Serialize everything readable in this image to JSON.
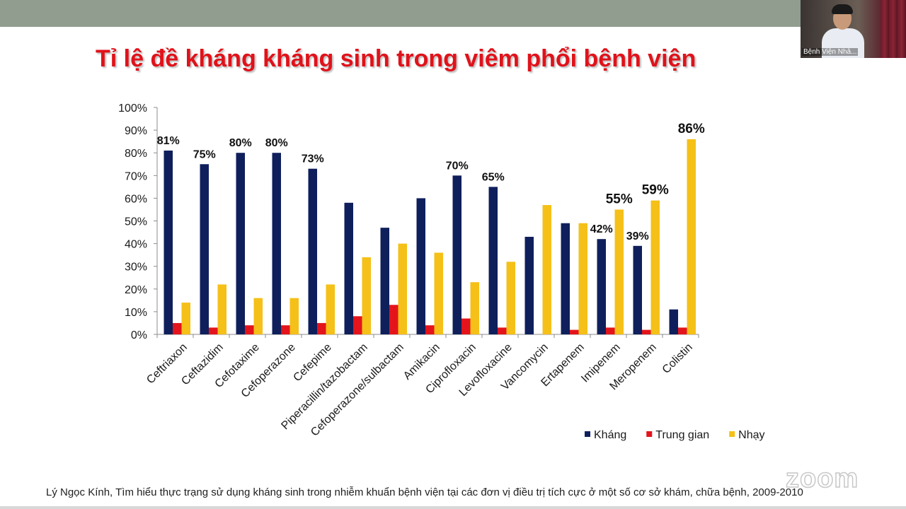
{
  "slide": {
    "title": "Tỉ lệ đề kháng kháng sinh trong viêm phổi bệnh viện",
    "citation": "Lý Ngọc Kính, Tìm hiểu thực trạng sử dụng kháng sinh trong nhiễm khuẩn bệnh viện tại các đơn vị điều trị tích cực ở một số cơ sở khám, chữa bệnh, 2009-2010"
  },
  "video": {
    "participant_name": "Bệnh Viện Nhâ..."
  },
  "watermark": {
    "text": "zoom"
  },
  "colors": {
    "khang": "#0f1f5c",
    "trung_gian": "#e3141b",
    "nhay": "#f5c018",
    "title": "#e0121a"
  },
  "chart_data": {
    "type": "bar",
    "categories": [
      "Ceftriaxon",
      "Ceftazidim",
      "Cefotaxime",
      "Cefoperazone",
      "Cefepime",
      "Piperacillin/tazobactam",
      "Cefoperazone/sulbactam",
      "Amikacin",
      "Ciprofloxacin",
      "Levofloxacine",
      "Vancomycin",
      "Ertapenem",
      "Imipenem",
      "Meropenem",
      "Colistin"
    ],
    "series": [
      {
        "name": "Kháng",
        "color": "#0f1f5c",
        "values": [
          81,
          75,
          80,
          80,
          73,
          58,
          47,
          60,
          70,
          65,
          43,
          49,
          42,
          39,
          11
        ]
      },
      {
        "name": "Trung gian",
        "color": "#e3141b",
        "values": [
          5,
          3,
          4,
          4,
          5,
          8,
          13,
          4,
          7,
          3,
          0,
          2,
          3,
          2,
          3
        ]
      },
      {
        "name": "Nhạy",
        "color": "#f5c018",
        "values": [
          14,
          22,
          16,
          16,
          22,
          34,
          40,
          36,
          23,
          32,
          57,
          49,
          55,
          59,
          86
        ]
      }
    ],
    "data_labels": [
      {
        "category": "Ceftriaxon",
        "series": "Kháng",
        "text": "81%"
      },
      {
        "category": "Ceftazidim",
        "series": "Kháng",
        "text": "75%"
      },
      {
        "category": "Cefotaxime",
        "series": "Kháng",
        "text": "80%"
      },
      {
        "category": "Cefoperazone",
        "series": "Kháng",
        "text": "80%"
      },
      {
        "category": "Cefepime",
        "series": "Kháng",
        "text": "73%"
      },
      {
        "category": "Ciprofloxacin",
        "series": "Kháng",
        "text": "70%"
      },
      {
        "category": "Levofloxacine",
        "series": "Kháng",
        "text": "65%"
      },
      {
        "category": "Imipenem",
        "series": "Kháng",
        "text": "42%"
      },
      {
        "category": "Meropenem",
        "series": "Kháng",
        "text": "39%"
      },
      {
        "category": "Imipenem",
        "series": "Nhạy",
        "text": "55%"
      },
      {
        "category": "Meropenem",
        "series": "Nhạy",
        "text": "59%"
      },
      {
        "category": "Colistin",
        "series": "Nhạy",
        "text": "86%"
      }
    ],
    "y_ticks": [
      "0%",
      "10%",
      "20%",
      "30%",
      "40%",
      "50%",
      "60%",
      "70%",
      "80%",
      "90%",
      "100%"
    ],
    "ylim": [
      0,
      100
    ],
    "grid": false,
    "legend_position": "bottom-right"
  }
}
